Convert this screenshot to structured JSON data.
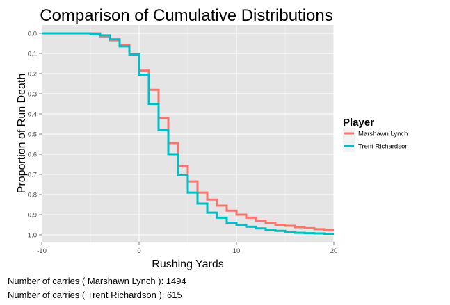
{
  "chart_data": {
    "type": "line",
    "step": true,
    "title": "Comparison of Cumulative Distributions",
    "xlabel": "Rushing Yards",
    "ylabel": "Proportion of Run Death",
    "xlim": [
      -10,
      20
    ],
    "ylim": [
      0,
      1
    ],
    "y_reversed": true,
    "x_ticks": [
      -10,
      0,
      10,
      20
    ],
    "x_tick_labels": [
      "-10",
      "0",
      "10",
      "20"
    ],
    "y_ticks": [
      0,
      0.1,
      0.2,
      0.3,
      0.4,
      0.5,
      0.6,
      0.7,
      0.8,
      0.9,
      1.0
    ],
    "y_tick_labels": [
      "0.0",
      "0.1",
      "0.2",
      "0.3",
      "0.4",
      "0.5",
      "0.6",
      "0.7",
      "0.8",
      "0.9",
      "1.0"
    ],
    "grid": true,
    "legend": {
      "title": "Player",
      "position": "right"
    },
    "series": [
      {
        "name": "Marshawn Lynch",
        "color": "#F8766D",
        "x": [
          -10,
          -4,
          -3,
          -2,
          -1,
          0,
          1,
          2,
          3,
          4,
          5,
          6,
          7,
          8,
          9,
          10,
          11,
          12,
          13,
          14,
          15,
          16,
          17,
          18,
          19,
          20
        ],
        "y": [
          0,
          0.015,
          0.035,
          0.06,
          0.105,
          0.185,
          0.28,
          0.42,
          0.545,
          0.66,
          0.735,
          0.79,
          0.825,
          0.855,
          0.88,
          0.9,
          0.915,
          0.93,
          0.94,
          0.95,
          0.955,
          0.962,
          0.967,
          0.972,
          0.977,
          0.977
        ]
      },
      {
        "name": "Trent Richardson",
        "color": "#00BFC4",
        "x": [
          -10,
          -5,
          -4,
          -3,
          -2,
          -1,
          0,
          1,
          2,
          3,
          4,
          5,
          6,
          7,
          8,
          9,
          10,
          11,
          12,
          13,
          14,
          15,
          16,
          17,
          18,
          19,
          20
        ],
        "y": [
          0,
          0.005,
          0.01,
          0.03,
          0.065,
          0.105,
          0.205,
          0.35,
          0.48,
          0.6,
          0.705,
          0.79,
          0.845,
          0.89,
          0.915,
          0.94,
          0.952,
          0.96,
          0.968,
          0.975,
          0.98,
          0.988,
          0.99,
          0.992,
          0.993,
          0.995,
          0.995
        ]
      }
    ]
  },
  "notes": {
    "lynch_carries": "Number of carries ( Marshawn Lynch ): 1494",
    "richardson_carries": "Number of carries ( Trent Richardson ): 615"
  }
}
